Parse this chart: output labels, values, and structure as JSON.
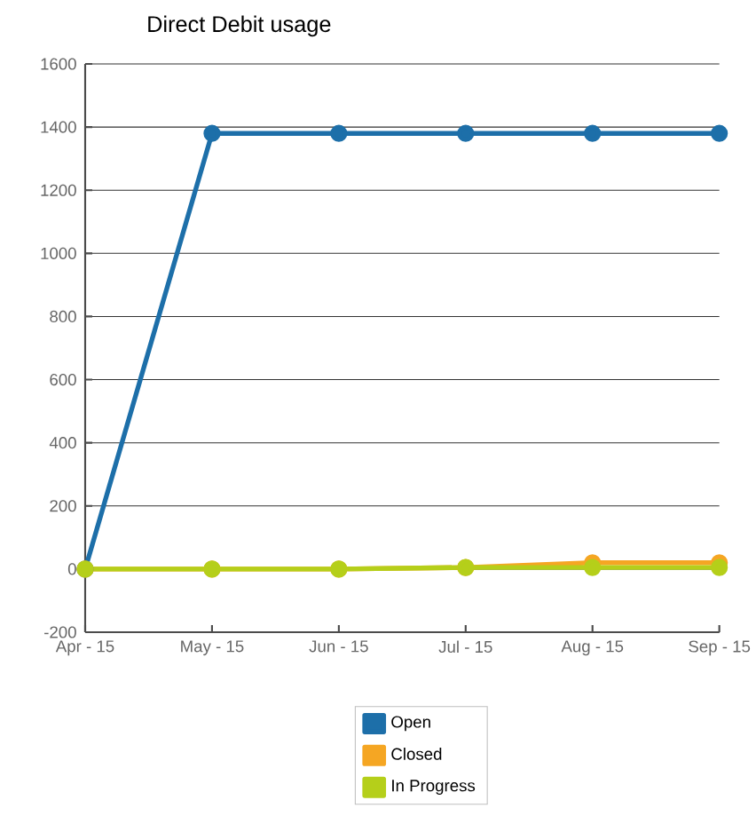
{
  "chart_data": {
    "type": "line",
    "title": "Direct Debit usage",
    "categories": [
      "Apr - 15",
      "May - 15",
      "Jun - 15",
      "Jul - 15",
      "Aug - 15",
      "Sep - 15"
    ],
    "series": [
      {
        "name": "Open",
        "color": "#1d6fa9",
        "values": [
          0,
          1380,
          1380,
          1380,
          1380,
          1380
        ]
      },
      {
        "name": "Closed",
        "color": "#f5a623",
        "values": [
          0,
          0,
          0,
          5,
          20,
          20
        ]
      },
      {
        "name": "In Progress",
        "color": "#b5cf1a",
        "values": [
          0,
          0,
          0,
          5,
          5,
          5
        ]
      }
    ],
    "ylim": [
      -200,
      1600
    ],
    "yticks": [
      -200,
      0,
      200,
      400,
      600,
      800,
      1000,
      1200,
      1400,
      1600
    ],
    "grid": "y",
    "legend": "bottom",
    "marker": "circle",
    "line_style": "solid"
  }
}
